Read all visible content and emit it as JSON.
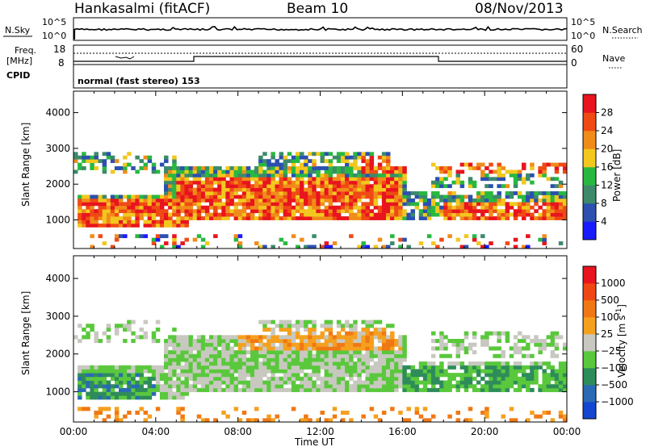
{
  "header": {
    "station": "Hankasalmi (fitACF)",
    "beam": "Beam 10",
    "date": "08/Nov/2013"
  },
  "nsky_panel": {
    "label": "N.Sky",
    "left_ticks": [
      "10^5",
      "10^0"
    ],
    "right_label": "N.Search",
    "right_ticks": [
      "10^5",
      "10^0"
    ]
  },
  "freq_panel": {
    "label_line1": "Freq.",
    "label_line2": "[MHz]",
    "left_ticks": [
      "18",
      "8"
    ],
    "right_label": "Nave",
    "right_ticks": [
      "60",
      "0"
    ]
  },
  "cpid_panel": {
    "label": "CPID",
    "mode_text": "normal (fast stereo) 153"
  },
  "x_axis": {
    "label": "Time UT",
    "ticks": [
      "00:00",
      "04:00",
      "08:00",
      "12:00",
      "16:00",
      "20:00",
      "00:00"
    ]
  },
  "chart_data": [
    {
      "type": "heatmap",
      "name": "power",
      "ylabel": "Slant Range [km]",
      "ylim": [
        200,
        4600
      ],
      "y_ticks": [
        "1000",
        "2000",
        "3000",
        "4000"
      ],
      "colorbar": {
        "label": "Power [dB]",
        "ticks": [
          "4",
          "8",
          "12",
          "16",
          "20",
          "24",
          "28"
        ],
        "colors": [
          "#1a1aff",
          "#2c4fb0",
          "#3c8a6a",
          "#28b840",
          "#f2c81e",
          "#f08c1a",
          "#f04a14",
          "#e8141e"
        ]
      },
      "x_range_hours": [
        0,
        24
      ]
    },
    {
      "type": "heatmap",
      "name": "velocity",
      "ylabel": "Slant Range [km]",
      "ylim": [
        200,
        4600
      ],
      "y_ticks": [
        "1000",
        "2000",
        "3000",
        "4000"
      ],
      "colorbar": {
        "label": "Velocity [m s",
        "label_sup": "-1",
        "ticks": [
          "1000",
          "500",
          "100",
          "25",
          "−25",
          "−100",
          "−500",
          "−1000"
        ],
        "colors": [
          "#1446d2",
          "#2a6ab4",
          "#2e8c5a",
          "#5ac83c",
          "#c8c8c0",
          "#f5a01e",
          "#f07814",
          "#f04614",
          "#e8141e"
        ]
      },
      "x_range_hours": [
        0,
        24
      ]
    }
  ]
}
